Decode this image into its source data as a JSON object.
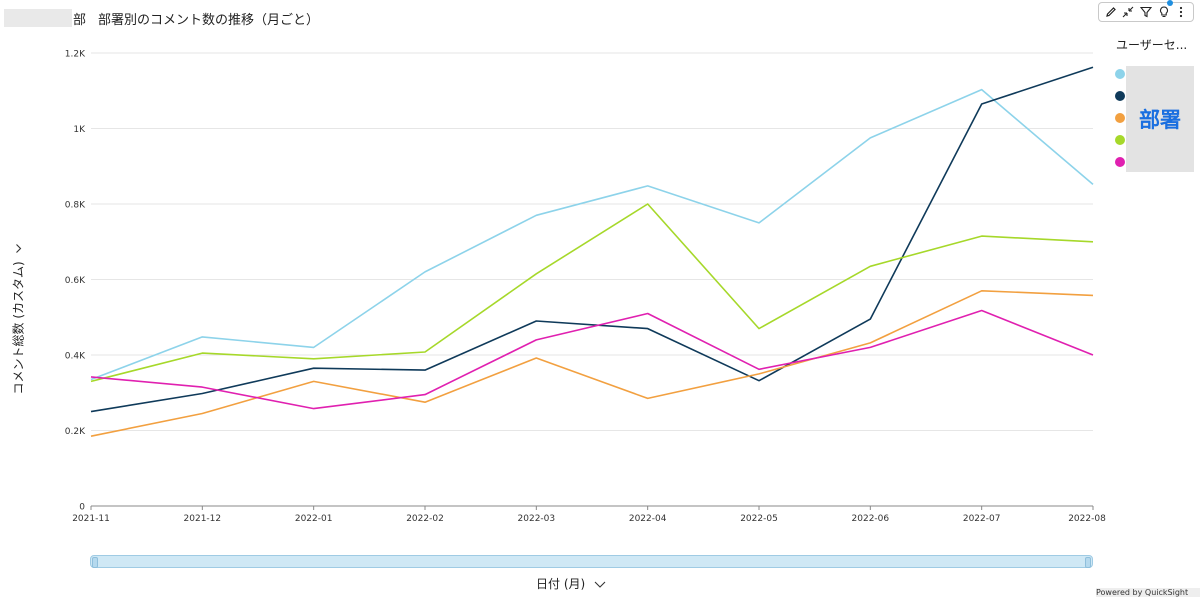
{
  "header": {
    "title_prefix": "部",
    "title": "部署別のコメント数の推移（月ごと）"
  },
  "toolbar": {
    "icons": [
      "pencil-icon",
      "collapse-icon",
      "filter-icon",
      "lightbulb-icon",
      "more-icon"
    ]
  },
  "legend": {
    "title": "ユーザーセ...",
    "overlay_text": "部署"
  },
  "axes": {
    "ylabel": "コメント総数 (カスタム)",
    "xlabel": "日付 (月)"
  },
  "footer": {
    "text": "Powered by QuickSight"
  },
  "chart_data": {
    "type": "line",
    "title": "部署別のコメント数の推移（月ごと）",
    "xlabel": "日付 (月)",
    "ylabel": "コメント総数 (カスタム)",
    "categories": [
      "2021-11",
      "2021-12",
      "2022-01",
      "2022-02",
      "2022-03",
      "2022-04",
      "2022-05",
      "2022-06",
      "2022-07",
      "2022-08"
    ],
    "ylim": [
      0,
      1200
    ],
    "yticks": [
      0,
      200,
      400,
      600,
      800,
      1000,
      1200
    ],
    "ytick_labels": [
      "0",
      "0.2K",
      "0.4K",
      "0.6K",
      "0.8K",
      "1K",
      "1.2K"
    ],
    "grid": true,
    "legend_position": "right",
    "series": [
      {
        "color": "#8dd3ea",
        "values": [
          335,
          448,
          420,
          620,
          770,
          848,
          750,
          975,
          1103,
          852
        ]
      },
      {
        "color": "#0f3a5a",
        "values": [
          250,
          298,
          365,
          360,
          490,
          470,
          332,
          495,
          1065,
          1162
        ]
      },
      {
        "color": "#f2a040",
        "values": [
          185,
          245,
          330,
          275,
          392,
          285,
          350,
          432,
          570,
          558
        ]
      },
      {
        "color": "#a6d82a",
        "values": [
          330,
          405,
          390,
          408,
          615,
          800,
          470,
          635,
          715,
          700
        ]
      },
      {
        "color": "#e020b0",
        "values": [
          342,
          315,
          258,
          295,
          440,
          510,
          362,
          420,
          518,
          400
        ]
      }
    ]
  }
}
